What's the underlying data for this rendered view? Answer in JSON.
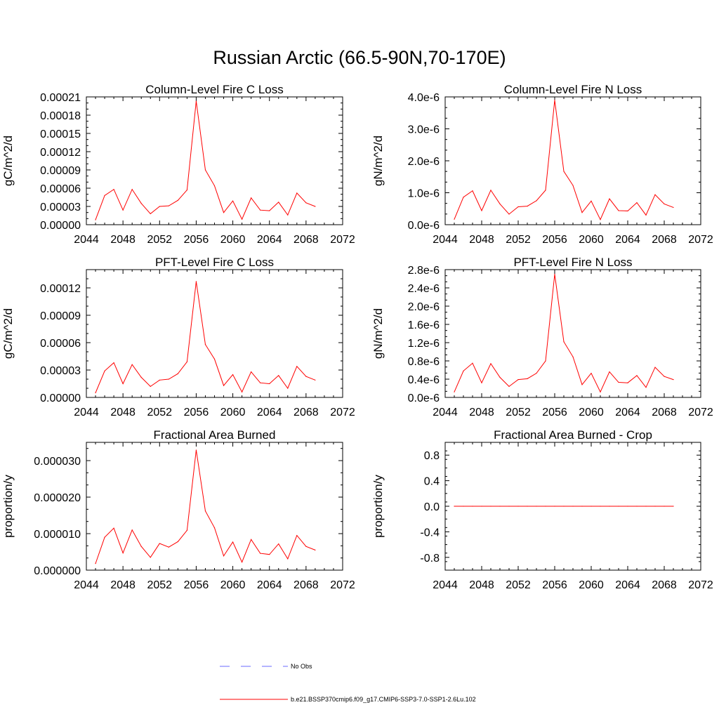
{
  "figure": {
    "title": "Russian Arctic (66.5-90N,70-170E)",
    "line_color": "#ff0000",
    "obs_line_color": "#6a6aff"
  },
  "legend": {
    "entries": [
      {
        "label": "No Obs",
        "style": "dashed",
        "color": "#6a6aff"
      },
      {
        "label": "b.e21.BSSP370cmip6.f09_g17.CMIP6-SSP3-7.0-SSP1-2.6Lu.102",
        "style": "solid",
        "color": "#ff0000"
      }
    ]
  },
  "chart_data": [
    {
      "type": "line",
      "title": "Column-Level Fire C Loss",
      "ylabel": "gC/m^2/d",
      "xlim": [
        2044,
        2072
      ],
      "ylim": [
        0,
        0.00021
      ],
      "xticks": [
        "2044",
        "2048",
        "2052",
        "2056",
        "2060",
        "2064",
        "2068",
        "2072"
      ],
      "yticks": [
        {
          "v": 0,
          "label": "0.00000"
        },
        {
          "v": 3e-05,
          "label": "0.00003"
        },
        {
          "v": 6e-05,
          "label": "0.00006"
        },
        {
          "v": 9e-05,
          "label": "0.00009"
        },
        {
          "v": 0.00012,
          "label": "0.00012"
        },
        {
          "v": 0.00015,
          "label": "0.00015"
        },
        {
          "v": 0.00018,
          "label": "0.00018"
        },
        {
          "v": 0.00021,
          "label": "0.00021"
        }
      ],
      "x": [
        2045,
        2046,
        2047,
        2048,
        2049,
        2050,
        2051,
        2052,
        2053,
        2054,
        2055,
        2056,
        2057,
        2058,
        2059,
        2060,
        2061,
        2062,
        2063,
        2064,
        2065,
        2066,
        2067,
        2068,
        2069
      ],
      "series": [
        {
          "values": [
            8e-06,
            4.8e-05,
            5.8e-05,
            2.4e-05,
            5.8e-05,
            3.5e-05,
            1.8e-05,
            3e-05,
            3.1e-05,
            4e-05,
            5.7e-05,
            0.000203,
            9e-05,
            6.4e-05,
            2e-05,
            3.9e-05,
            9e-06,
            4.4e-05,
            2.4e-05,
            2.3e-05,
            3.7e-05,
            1.6e-05,
            5.2e-05,
            3.6e-05,
            3e-05
          ]
        }
      ]
    },
    {
      "type": "line",
      "title": "Column-Level Fire N Loss",
      "ylabel": "gN/m^2/d",
      "xlim": [
        2044,
        2072
      ],
      "ylim": [
        0,
        4e-06
      ],
      "xticks": [
        "2044",
        "2048",
        "2052",
        "2056",
        "2060",
        "2064",
        "2068",
        "2072"
      ],
      "yticks": [
        {
          "v": 0,
          "label": "0.0e-6"
        },
        {
          "v": 1e-06,
          "label": "1.0e-6"
        },
        {
          "v": 2e-06,
          "label": "2.0e-6"
        },
        {
          "v": 3e-06,
          "label": "3.0e-6"
        },
        {
          "v": 4e-06,
          "label": "4.0e-6"
        }
      ],
      "x": [
        2045,
        2046,
        2047,
        2048,
        2049,
        2050,
        2051,
        2052,
        2053,
        2054,
        2055,
        2056,
        2057,
        2058,
        2059,
        2060,
        2061,
        2062,
        2063,
        2064,
        2065,
        2066,
        2067,
        2068,
        2069
      ],
      "series": [
        {
          "values": [
            1.7e-07,
            8.6e-07,
            1.06e-06,
            4.4e-07,
            1.08e-06,
            6.5e-07,
            3.3e-07,
            5.6e-07,
            5.8e-07,
            7.5e-07,
            1.08e-06,
            3.9e-06,
            1.67e-06,
            1.23e-06,
            3.8e-07,
            7.4e-07,
            1.6e-07,
            8.1e-07,
            4.4e-07,
            4.3e-07,
            6.9e-07,
            3e-07,
            9.4e-07,
            6.5e-07,
            5.4e-07
          ]
        }
      ]
    },
    {
      "type": "line",
      "title": "PFT-Level Fire C Loss",
      "ylabel": "gC/m^2/d",
      "xlim": [
        2044,
        2072
      ],
      "ylim": [
        0,
        0.00014
      ],
      "xticks": [
        "2044",
        "2048",
        "2052",
        "2056",
        "2060",
        "2064",
        "2068",
        "2072"
      ],
      "yticks": [
        {
          "v": 0,
          "label": "0.00000"
        },
        {
          "v": 3e-05,
          "label": "0.00003"
        },
        {
          "v": 6e-05,
          "label": "0.00006"
        },
        {
          "v": 9e-05,
          "label": "0.00009"
        },
        {
          "v": 0.00012,
          "label": "0.00012"
        }
      ],
      "x": [
        2045,
        2046,
        2047,
        2048,
        2049,
        2050,
        2051,
        2052,
        2053,
        2054,
        2055,
        2056,
        2057,
        2058,
        2059,
        2060,
        2061,
        2062,
        2063,
        2064,
        2065,
        2066,
        2067,
        2068,
        2069
      ],
      "series": [
        {
          "values": [
            5e-06,
            2.9e-05,
            3.8e-05,
            1.5e-05,
            3.6e-05,
            2.2e-05,
            1.2e-05,
            1.9e-05,
            2e-05,
            2.6e-05,
            3.9e-05,
            0.000127,
            5.8e-05,
            4.2e-05,
            1.3e-05,
            2.5e-05,
            6e-06,
            2.8e-05,
            1.6e-05,
            1.5e-05,
            2.4e-05,
            1e-05,
            3.4e-05,
            2.3e-05,
            1.9e-05
          ]
        }
      ]
    },
    {
      "type": "line",
      "title": "PFT-Level Fire N Loss",
      "ylabel": "gN/m^2/d",
      "xlim": [
        2044,
        2072
      ],
      "ylim": [
        0,
        2.8e-06
      ],
      "xticks": [
        "2044",
        "2048",
        "2052",
        "2056",
        "2060",
        "2064",
        "2068",
        "2072"
      ],
      "yticks": [
        {
          "v": 0,
          "label": "0.0e-6"
        },
        {
          "v": 4e-07,
          "label": "0.4e-6"
        },
        {
          "v": 8e-07,
          "label": "0.8e-6"
        },
        {
          "v": 1.2e-06,
          "label": "1.2e-6"
        },
        {
          "v": 1.6e-06,
          "label": "1.6e-6"
        },
        {
          "v": 2e-06,
          "label": "2.0e-6"
        },
        {
          "v": 2.4e-06,
          "label": "2.4e-6"
        },
        {
          "v": 2.8e-06,
          "label": "2.8e-6"
        }
      ],
      "x": [
        2045,
        2046,
        2047,
        2048,
        2049,
        2050,
        2051,
        2052,
        2053,
        2054,
        2055,
        2056,
        2057,
        2058,
        2059,
        2060,
        2061,
        2062,
        2063,
        2064,
        2065,
        2066,
        2067,
        2068,
        2069
      ],
      "series": [
        {
          "values": [
            1.2e-07,
            5.8e-07,
            7.5e-07,
            3.2e-07,
            7.4e-07,
            4.4e-07,
            2.4e-07,
            3.9e-07,
            4.1e-07,
            5.3e-07,
            8e-07,
            2.7e-06,
            1.22e-06,
            8.9e-07,
            2.8e-07,
            5.3e-07,
            1.2e-07,
            5.6e-07,
            3.3e-07,
            3.2e-07,
            4.8e-07,
            2.2e-07,
            6.6e-07,
            4.6e-07,
            3.9e-07
          ]
        }
      ]
    },
    {
      "type": "line",
      "title": "Fractional Area Burned",
      "ylabel": "proportion/y",
      "xlim": [
        2044,
        2072
      ],
      "ylim": [
        0,
        3.5e-05
      ],
      "xticks": [
        "2044",
        "2048",
        "2052",
        "2056",
        "2060",
        "2064",
        "2068",
        "2072"
      ],
      "yticks": [
        {
          "v": 0,
          "label": "0.000000"
        },
        {
          "v": 1e-05,
          "label": "0.000010"
        },
        {
          "v": 2e-05,
          "label": "0.000020"
        },
        {
          "v": 3e-05,
          "label": "0.000030"
        }
      ],
      "x": [
        2045,
        2046,
        2047,
        2048,
        2049,
        2050,
        2051,
        2052,
        2053,
        2054,
        2055,
        2056,
        2057,
        2058,
        2059,
        2060,
        2061,
        2062,
        2063,
        2064,
        2065,
        2066,
        2067,
        2068,
        2069
      ],
      "series": [
        {
          "values": [
            1.8e-06,
            9e-06,
            1.15e-05,
            4.7e-06,
            1.1e-05,
            6.5e-06,
            3.5e-06,
            7.3e-06,
            6.3e-06,
            7.8e-06,
            1.09e-05,
            3.29e-05,
            1.62e-05,
            1.16e-05,
            3.9e-06,
            7.7e-06,
            2.2e-06,
            8.4e-06,
            4.6e-06,
            4.3e-06,
            7.2e-06,
            3.1e-06,
            9.5e-06,
            6.5e-06,
            5.5e-06
          ]
        }
      ]
    },
    {
      "type": "line",
      "title": "Fractional Area Burned - Crop",
      "ylabel": "proportion/y",
      "xlim": [
        2044,
        2072
      ],
      "ylim": [
        -1.0,
        1.0
      ],
      "xticks": [
        "2044",
        "2048",
        "2052",
        "2056",
        "2060",
        "2064",
        "2068",
        "2072"
      ],
      "yticks": [
        {
          "v": -0.8,
          "label": "-0.8"
        },
        {
          "v": -0.4,
          "label": "-0.4"
        },
        {
          "v": 0.0,
          "label": "0.0"
        },
        {
          "v": 0.4,
          "label": "0.4"
        },
        {
          "v": 0.8,
          "label": "0.8"
        }
      ],
      "x": [
        2045,
        2046,
        2047,
        2048,
        2049,
        2050,
        2051,
        2052,
        2053,
        2054,
        2055,
        2056,
        2057,
        2058,
        2059,
        2060,
        2061,
        2062,
        2063,
        2064,
        2065,
        2066,
        2067,
        2068,
        2069
      ],
      "series": [
        {
          "values": [
            0,
            0,
            0,
            0,
            0,
            0,
            0,
            0,
            0,
            0,
            0,
            0,
            0,
            0,
            0,
            0,
            0,
            0,
            0,
            0,
            0,
            0,
            0,
            0,
            0
          ]
        }
      ]
    }
  ]
}
